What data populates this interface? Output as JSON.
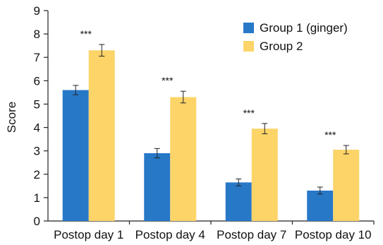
{
  "chart_data": {
    "type": "bar",
    "title": "",
    "xlabel": "",
    "ylabel": "Score",
    "ylim": [
      0,
      9
    ],
    "yticks": [
      0,
      1,
      2,
      3,
      4,
      5,
      6,
      7,
      8,
      9
    ],
    "categories": [
      "Postop day 1",
      "Postop day 4",
      "Postop day 7",
      "Postop day 10"
    ],
    "series": [
      {
        "name": "Group 1 (ginger)",
        "color": "#2878c8",
        "values": [
          5.6,
          2.9,
          1.65,
          1.3
        ],
        "errors": [
          0.2,
          0.2,
          0.15,
          0.15
        ]
      },
      {
        "name": "Group 2",
        "color": "#fcd468",
        "values": [
          7.3,
          5.3,
          3.95,
          3.05
        ],
        "errors": [
          0.25,
          0.25,
          0.22,
          0.18
        ]
      }
    ],
    "significance": [
      "***",
      "***",
      "***",
      "***"
    ],
    "legend_position": "top-right",
    "grid": false
  }
}
